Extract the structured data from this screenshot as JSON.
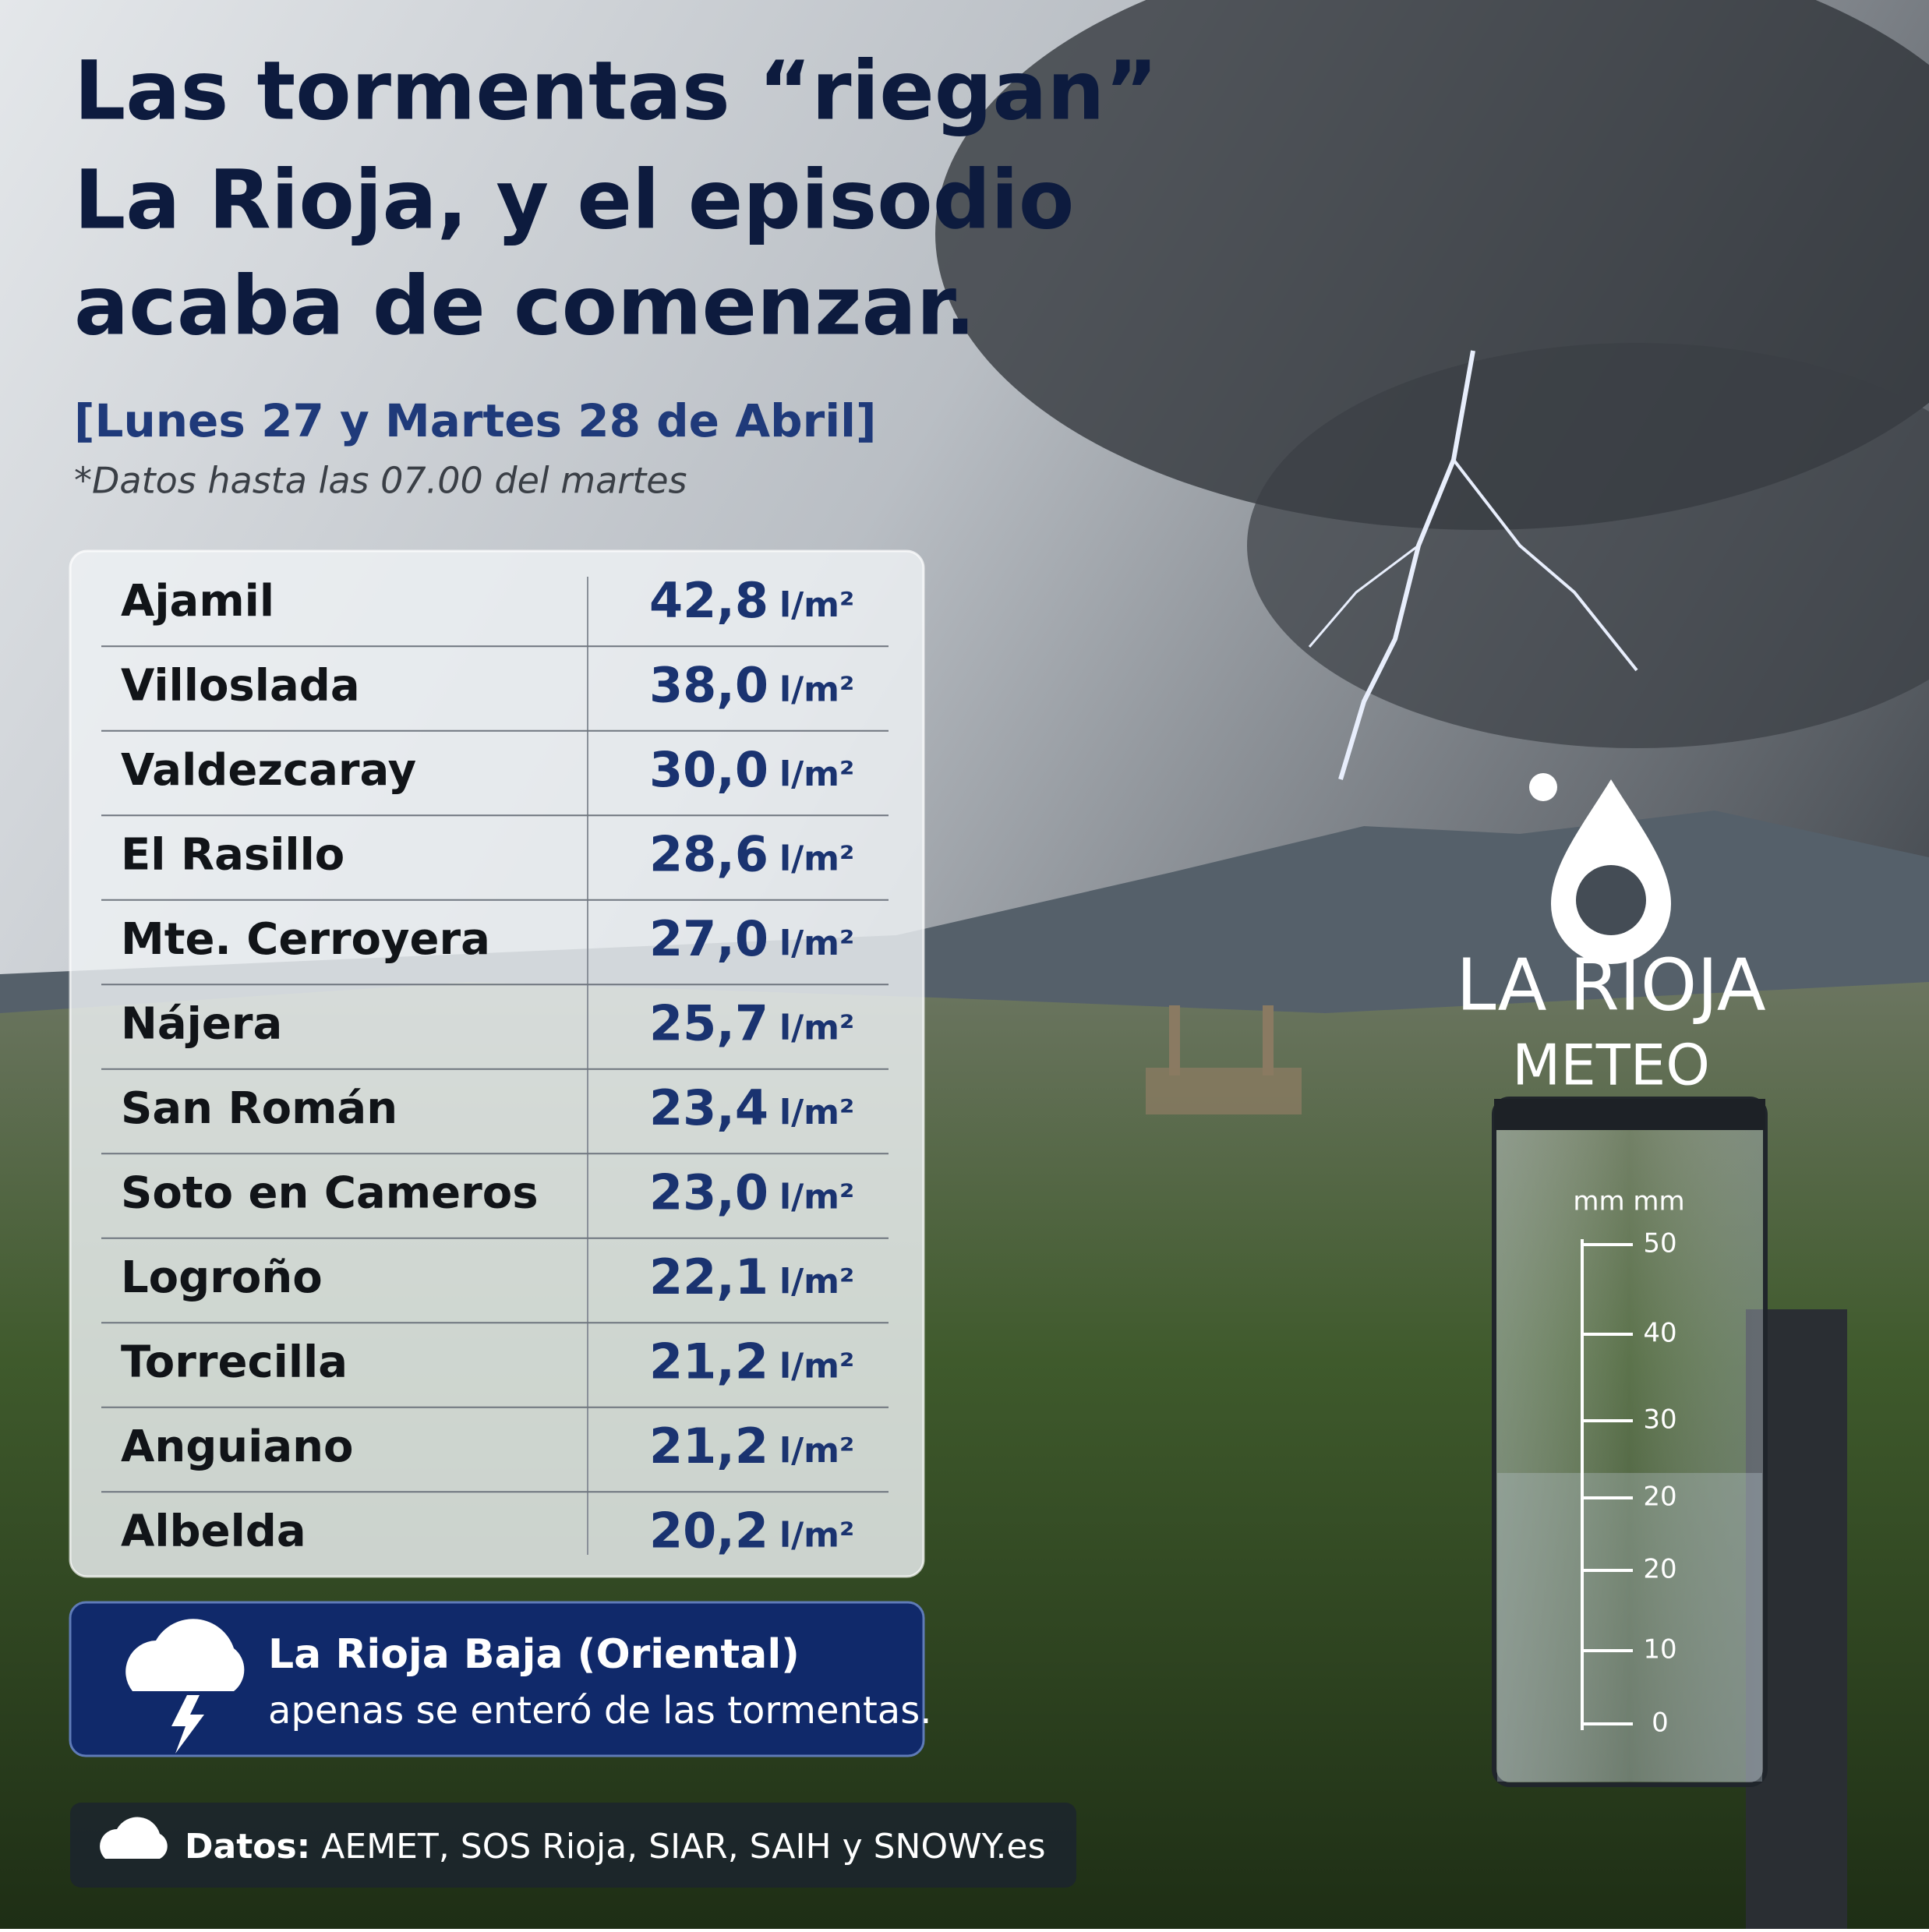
{
  "header": {
    "title_lines": [
      "Las tormentas “riegan”",
      "La Rioja, y el episodio",
      "acaba de comenzar."
    ],
    "subtitle": "[Lunes 27 y Martes 28 de Abril]",
    "note": "*Datos hasta las 07.00 del martes"
  },
  "table": {
    "rows": [
      [
        "Ajamil",
        "42,8",
        "l/m²"
      ],
      [
        "Villoslada",
        "38,0",
        "l/m²"
      ],
      [
        "Valdezcaray",
        "30,0",
        "l/m²"
      ],
      [
        "El Rasillo",
        "28,6",
        "l/m²"
      ],
      [
        "Mte. Cerroyera",
        "27,0",
        "l/m²"
      ],
      [
        "Nájera",
        "25,7",
        "l/m²"
      ],
      [
        "San Román",
        "23,4",
        "l/m²"
      ],
      [
        "Soto en Cameros",
        "23,0",
        "l/m²"
      ],
      [
        "Logroño",
        "22,1",
        "l/m²"
      ],
      [
        "Torrecilla",
        "21,2",
        "l/m²"
      ],
      [
        "Anguiano",
        "21,2",
        "l/m²"
      ],
      [
        "Albelda",
        "20,2",
        "l/m²"
      ]
    ]
  },
  "callout": {
    "title": "La Rioja Baja (Oriental)",
    "text": "apenas se enteró de las tormentas."
  },
  "footer": {
    "label": "Datos:",
    "sources": "AEMET, SOS Rioja, SIAR, SAIH y SNOWY.es"
  },
  "logo": {
    "name": "LA RIOJA",
    "sub": "METEO"
  },
  "gauge": {
    "units": "mm mm",
    "labels": [
      "50",
      "40",
      "30",
      "20",
      "20",
      "10",
      "0"
    ]
  }
}
